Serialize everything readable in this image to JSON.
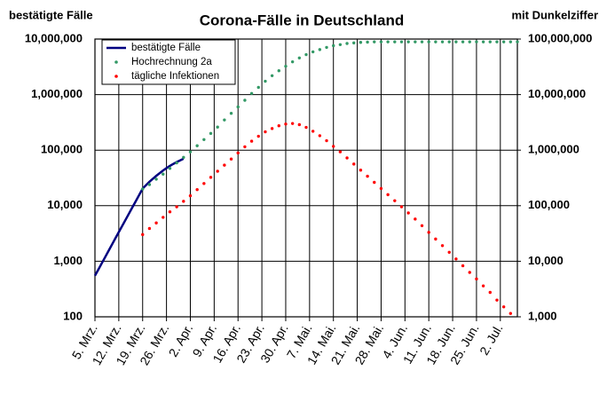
{
  "chart_data": {
    "type": "line",
    "title": "Corona-Fälle in Deutschland",
    "y_label": "bestätigte Fälle",
    "y2_label": "mit Dunkelziffer",
    "yscale": "log",
    "y2scale": "log",
    "grid": true,
    "legend": "upper left",
    "xlim": [
      0,
      124
    ],
    "xticks": [
      {
        "value": 0,
        "label": "5. Mrz."
      },
      {
        "value": 7,
        "label": "12. Mrz."
      },
      {
        "value": 14,
        "label": "19. Mrz."
      },
      {
        "value": 21,
        "label": "26. Mrz."
      },
      {
        "value": 28,
        "label": "2. Apr."
      },
      {
        "value": 35,
        "label": "9. Apr."
      },
      {
        "value": 42,
        "label": "16. Apr."
      },
      {
        "value": 49,
        "label": "23. Apr."
      },
      {
        "value": 56,
        "label": "30. Apr."
      },
      {
        "value": 63,
        "label": "7. Mai."
      },
      {
        "value": 70,
        "label": "14. Mai."
      },
      {
        "value": 77,
        "label": "21. Mai."
      },
      {
        "value": 84,
        "label": "28. Mai."
      },
      {
        "value": 91,
        "label": "4. Jun."
      },
      {
        "value": 98,
        "label": "11. Jun."
      },
      {
        "value": 105,
        "label": "18. Jun."
      },
      {
        "value": 112,
        "label": "25. Jun."
      },
      {
        "value": 119,
        "label": "2. Jul."
      }
    ],
    "ylim": [
      100,
      10000000
    ],
    "yticks": [
      100,
      {
        "value": 1000,
        "label": "1,000"
      },
      {
        "value": 10000,
        "label": "10,000"
      },
      {
        "value": 100000,
        "label": "100,000"
      },
      {
        "value": 1000000,
        "label": "1,000,000"
      },
      {
        "value": 10000000,
        "label": "10,000,000"
      }
    ],
    "y2lim": [
      1000,
      100000000
    ],
    "y2ticks": [
      {
        "value": 1000,
        "label": "1,000"
      },
      {
        "value": 10000,
        "label": "10,000"
      },
      {
        "value": 100000,
        "label": "100,000"
      },
      {
        "value": 1000000,
        "label": "1,000,000"
      },
      {
        "value": 10000000,
        "label": "10,000,000"
      },
      {
        "value": 100000000,
        "label": "100,000,000"
      }
    ],
    "series": [
      {
        "name": "bestätigte Fälle",
        "color": "#000080",
        "style": "line",
        "x": [
          0,
          1,
          2,
          3,
          4,
          5,
          6,
          7,
          8,
          9,
          10,
          11,
          12,
          13,
          14,
          15,
          16,
          17,
          18,
          19,
          20,
          21,
          22,
          23,
          24,
          25,
          26
        ],
        "values": [
          550,
          710,
          920,
          1190,
          1540,
          2000,
          2590,
          3350,
          4330,
          5600,
          7250,
          9400,
          12100,
          15700,
          20300,
          23500,
          27000,
          30500,
          34500,
          38500,
          43000,
          47500,
          52000,
          56500,
          61000,
          65500,
          70000
        ]
      },
      {
        "name": "Hochrechnung 2a",
        "color": "#339966",
        "style": "dots",
        "axis": "y2",
        "x": [
          14,
          16,
          18,
          20,
          22,
          24,
          26,
          28,
          30,
          32,
          34,
          36,
          38,
          40,
          42,
          44,
          46,
          48,
          50,
          52,
          54,
          56,
          58,
          60,
          62,
          64,
          66,
          68,
          70,
          72,
          74,
          76,
          78,
          80,
          82,
          84,
          86,
          88,
          90,
          92,
          94,
          96,
          98,
          100,
          102,
          104,
          106,
          108,
          110,
          112,
          114,
          116,
          118,
          120,
          122,
          124
        ],
        "values": [
          200000,
          240000,
          300000,
          370000,
          470000,
          590000,
          740000,
          930000,
          1200000,
          1550000,
          2000000,
          2600000,
          3500000,
          4600000,
          6000000,
          7900000,
          10500000,
          13500000,
          17400000,
          21900000,
          26900000,
          32400000,
          38900000,
          45700000,
          52500000,
          58900000,
          64600000,
          70800000,
          75900000,
          79400000,
          83200000,
          85100000,
          87100000,
          88000000,
          89000000,
          89000000,
          89000000,
          89000000,
          89000000,
          89000000,
          89000000,
          89000000,
          89000000,
          89000000,
          89000000,
          89000000,
          89000000,
          89000000,
          89000000,
          89000000,
          89000000,
          89000000,
          89000000,
          89000000,
          89000000,
          89000000
        ]
      },
      {
        "name": "tägliche Infektionen",
        "color": "#ff0000",
        "style": "dots",
        "axis": "y2",
        "x": [
          14,
          16,
          18,
          20,
          22,
          24,
          26,
          28,
          30,
          32,
          34,
          36,
          38,
          40,
          42,
          44,
          46,
          48,
          50,
          52,
          54,
          56,
          58,
          60,
          62,
          64,
          66,
          68,
          70,
          72,
          74,
          76,
          78,
          80,
          82,
          84,
          86,
          88,
          90,
          92,
          94,
          96,
          98,
          100,
          102,
          104,
          106,
          108,
          110,
          112,
          114,
          116,
          118,
          120,
          122
        ],
        "values": [
          30200,
          38900,
          49000,
          61700,
          77600,
          95500,
          120000,
          151000,
          195000,
          251000,
          324000,
          417000,
          537000,
          692000,
          891000,
          1150000,
          1450000,
          1780000,
          2140000,
          2450000,
          2750000,
          2950000,
          3020000,
          2880000,
          2570000,
          2190000,
          1820000,
          1480000,
          1170000,
          933000,
          724000,
          562000,
          437000,
          339000,
          263000,
          204000,
          158000,
          123000,
          95500,
          74100,
          57500,
          43700,
          33100,
          25100,
          19100,
          14500,
          11000,
          8300,
          6300,
          4800,
          3600,
          2750,
          2000,
          1510,
          1150
        ]
      }
    ]
  }
}
